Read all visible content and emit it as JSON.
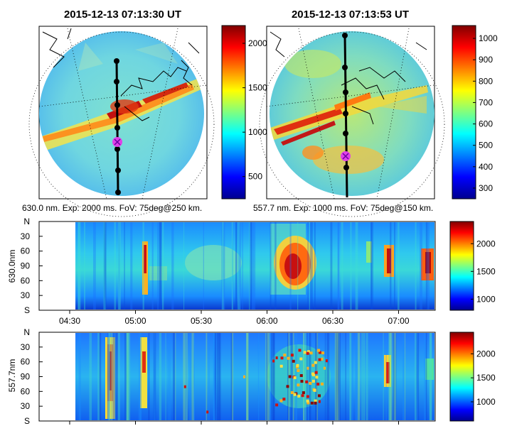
{
  "chart_data": [
    {
      "type": "heatmap",
      "title": "2015-12-13 07:13:30 UT",
      "caption": "630.0 nm. Exp: 2000 ms. FoV: 75deg@250 km.",
      "colorbar_ticks": [
        500,
        1000,
        1500,
        2000
      ],
      "colorbar_range": [
        250,
        2200
      ]
    },
    {
      "type": "heatmap",
      "title": "2015-12-13 07:13:53 UT",
      "caption": "557.7 nm. Exp: 1000 ms. FoV: 75deg@150 km.",
      "colorbar_ticks": [
        300,
        400,
        500,
        600,
        700,
        800,
        900,
        1000
      ],
      "colorbar_range": [
        250,
        1060
      ]
    },
    {
      "type": "heatmap",
      "ylabel": "630.0nm",
      "yticks": [
        "N",
        "30",
        "60",
        "90",
        "60",
        "30",
        "S"
      ],
      "xticks": [
        "04:30",
        "05:00",
        "05:30",
        "06:00",
        "06:30",
        "07:00"
      ],
      "colorbar_ticks": [
        1000,
        1500,
        2000
      ],
      "colorbar_range": [
        800,
        2400
      ]
    },
    {
      "type": "heatmap",
      "ylabel": "557.7nm",
      "yticks": [
        "N",
        "30",
        "60",
        "90",
        "60",
        "30",
        "S"
      ],
      "colorbar_ticks": [
        1000,
        1500,
        2000
      ],
      "colorbar_range": [
        600,
        2450
      ]
    }
  ]
}
